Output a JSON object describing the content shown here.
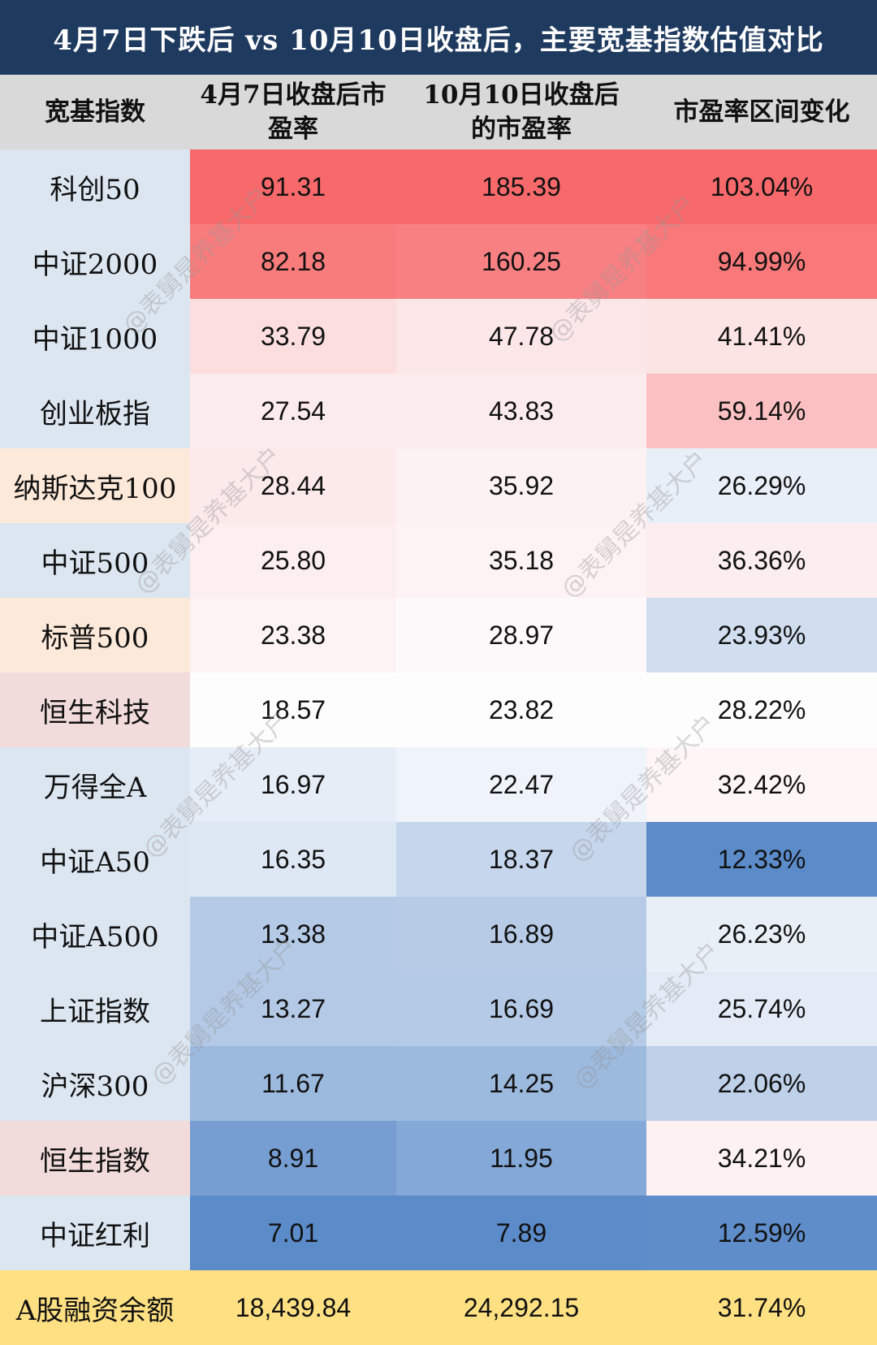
{
  "title": "4月7日下跌后 vs 10月10日收盘后，主要宽基指数估值对比",
  "watermark": "@表舅是养基大户",
  "colors": {
    "title_bg": "#1f3a5f",
    "header_bg": "#d9d9d9",
    "name_blue": "#dce6f1",
    "name_orange": "#fde9d9",
    "name_pink": "#f2dcdb",
    "footer_bg": "#ffe082"
  },
  "headers": [
    "宽基指数",
    "4月7日收盘后市盈率",
    "10月10日收盘后的市盈率",
    "市盈率区间变化"
  ],
  "chart_data": {
    "type": "table",
    "title": "4月7日下跌后 vs 10月10日收盘后，主要宽基指数估值对比",
    "columns": [
      "宽基指数",
      "4月7日收盘后市盈率",
      "10月10日收盘后的市盈率",
      "市盈率区间变化"
    ],
    "rows": [
      {
        "name": "科创50",
        "pe_apr7": "91.31",
        "pe_oct10": "185.39",
        "change": "103.04%",
        "group": "cn"
      },
      {
        "name": "中证2000",
        "pe_apr7": "82.18",
        "pe_oct10": "160.25",
        "change": "94.99%",
        "group": "cn"
      },
      {
        "name": "中证1000",
        "pe_apr7": "33.79",
        "pe_oct10": "47.78",
        "change": "41.41%",
        "group": "cn"
      },
      {
        "name": "创业板指",
        "pe_apr7": "27.54",
        "pe_oct10": "43.83",
        "change": "59.14%",
        "group": "cn"
      },
      {
        "name": "纳斯达克100",
        "pe_apr7": "28.44",
        "pe_oct10": "35.92",
        "change": "26.29%",
        "group": "us"
      },
      {
        "name": "中证500",
        "pe_apr7": "25.80",
        "pe_oct10": "35.18",
        "change": "36.36%",
        "group": "cn"
      },
      {
        "name": "标普500",
        "pe_apr7": "23.38",
        "pe_oct10": "28.97",
        "change": "23.93%",
        "group": "us"
      },
      {
        "name": "恒生科技",
        "pe_apr7": "18.57",
        "pe_oct10": "23.82",
        "change": "28.22%",
        "group": "hk"
      },
      {
        "name": "万得全A",
        "pe_apr7": "16.97",
        "pe_oct10": "22.47",
        "change": "32.42%",
        "group": "cn"
      },
      {
        "name": "中证A50",
        "pe_apr7": "16.35",
        "pe_oct10": "18.37",
        "change": "12.33%",
        "group": "cn"
      },
      {
        "name": "中证A500",
        "pe_apr7": "13.38",
        "pe_oct10": "16.89",
        "change": "26.23%",
        "group": "cn"
      },
      {
        "name": "上证指数",
        "pe_apr7": "13.27",
        "pe_oct10": "16.69",
        "change": "25.74%",
        "group": "cn"
      },
      {
        "name": "沪深300",
        "pe_apr7": "11.67",
        "pe_oct10": "14.25",
        "change": "22.06%",
        "group": "cn"
      },
      {
        "name": "恒生指数",
        "pe_apr7": "8.91",
        "pe_oct10": "11.95",
        "change": "34.21%",
        "group": "hk"
      },
      {
        "name": "中证红利",
        "pe_apr7": "7.01",
        "pe_oct10": "7.89",
        "change": "12.59%",
        "group": "cn"
      }
    ],
    "footer": {
      "name": "A股融资余额",
      "pe_apr7": "18,439.84",
      "pe_oct10": "24,292.15",
      "change": "31.74%"
    }
  }
}
